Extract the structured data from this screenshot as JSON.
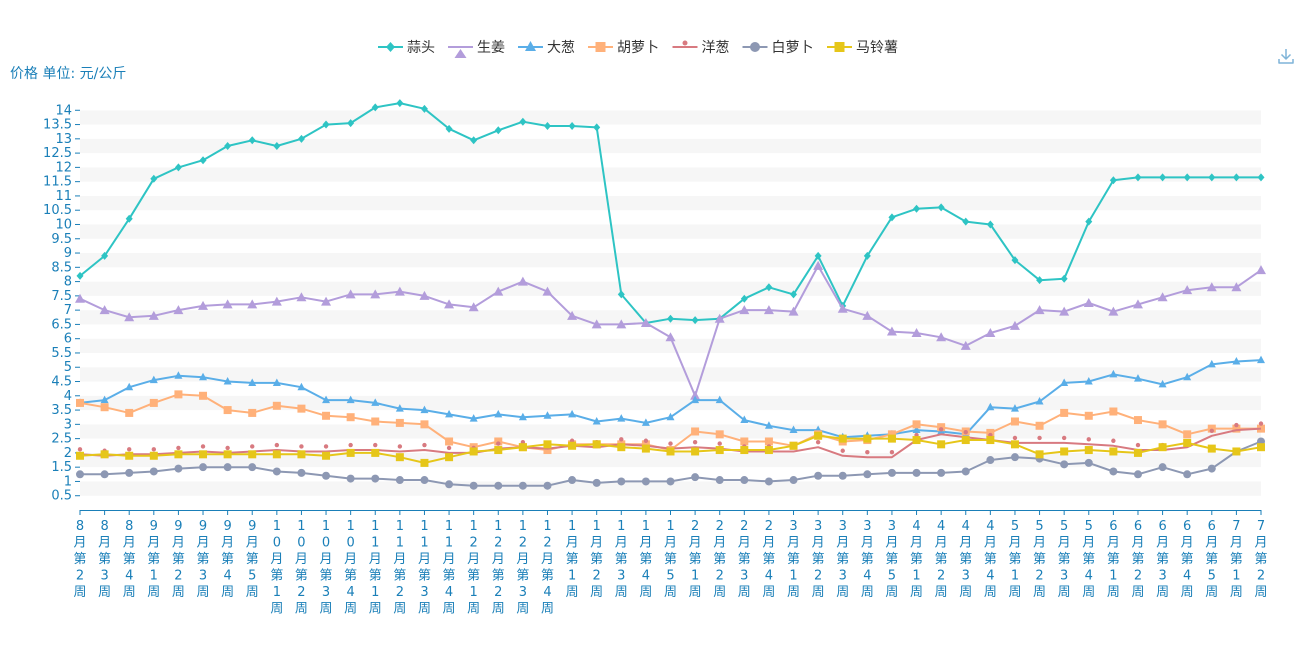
{
  "toolbar": {
    "download_icon": "download-icon"
  },
  "chart_data": {
    "type": "line",
    "ylabel": "价格 单位: 元/公斤",
    "ylim": [
      0,
      14.5
    ],
    "yticks": [
      0.5,
      1,
      1.5,
      2,
      2.5,
      3,
      3.5,
      4,
      4.5,
      5,
      5.5,
      6,
      6.5,
      7,
      7.5,
      8,
      8.5,
      9,
      9.5,
      10,
      10.5,
      11,
      11.5,
      12,
      12.5,
      13,
      13.5,
      14
    ],
    "ytick_labels": [
      "0.5",
      "1",
      "1.5",
      "2",
      "2.5",
      "3",
      "3.5",
      "4",
      "4.5",
      "5",
      "5.5",
      "6",
      "6.5",
      "7",
      "7.5",
      "8",
      "8.5",
      "9",
      "9.5",
      "10",
      "10.5",
      "11",
      "11.5",
      "12",
      "12.5",
      "13",
      "13.5",
      "14"
    ],
    "grid": "horizontal-bands",
    "legend_position": "top-center",
    "categories": [
      "8月第2周",
      "8月第3周",
      "8月第4周",
      "9月第1周",
      "9月第2周",
      "9月第3周",
      "9月第4周",
      "9月第5周",
      "10月第1周",
      "10月第2周",
      "10月第3周",
      "10月第4周",
      "11月第1周",
      "11月第2周",
      "11月第3周",
      "11月第4周",
      "12月第1周",
      "12月第2周",
      "12月第3周",
      "12月第4周",
      "1月第1周",
      "1月第2周",
      "1月第3周",
      "1月第4周",
      "1月第5周",
      "2月第1周",
      "2月第2周",
      "2月第3周",
      "2月第4周",
      "3月第1周",
      "3月第2周",
      "3月第3周",
      "3月第4周",
      "3月第5周",
      "4月第1周",
      "4月第2周",
      "4月第3周",
      "4月第4周",
      "5月第1周",
      "5月第2周",
      "5月第3周",
      "5月第4周",
      "6月第1周",
      "6月第2周",
      "6月第3周",
      "6月第4周",
      "6月第5周",
      "7月第1周",
      "7月第2周"
    ],
    "series": [
      {
        "name": "蒜头",
        "color": "#2ec4c4",
        "marker": "diamond",
        "values": [
          8.2,
          8.9,
          10.2,
          11.6,
          12,
          12.25,
          12.75,
          12.95,
          12.75,
          13,
          13.5,
          13.55,
          14.1,
          14.25,
          14.05,
          13.35,
          12.95,
          13.3,
          13.6,
          13.45,
          13.45,
          13.4,
          7.55,
          6.55,
          6.7,
          6.65,
          6.7,
          7.4,
          7.8,
          7.55,
          8.9,
          7.15,
          8.9,
          10.25,
          10.55,
          10.6,
          10.1,
          10,
          8.75,
          8.05,
          8.1,
          10.1,
          11.55,
          11.65,
          11.65,
          11.65,
          11.65,
          11.65,
          11.65
        ]
      },
      {
        "name": "生姜",
        "color": "#b39ddb",
        "marker": "triangle-lg",
        "values": [
          7.4,
          7,
          6.75,
          6.8,
          7,
          7.15,
          7.2,
          7.2,
          7.3,
          7.45,
          7.3,
          7.55,
          7.55,
          7.65,
          7.5,
          7.2,
          7.1,
          7.65,
          8,
          7.65,
          6.8,
          6.5,
          6.5,
          6.55,
          6.05,
          4,
          6.7,
          7,
          7,
          6.95,
          8.55,
          7.05,
          6.8,
          6.25,
          6.2,
          6.05,
          5.75,
          6.2,
          6.45,
          7,
          6.95,
          7.25,
          6.95,
          7.2,
          7.45,
          7.7,
          7.8,
          7.8,
          8.4
        ]
      },
      {
        "name": "大葱",
        "color": "#5aaee8",
        "marker": "triangle",
        "values": [
          3.75,
          3.85,
          4.3,
          4.55,
          4.7,
          4.65,
          4.5,
          4.45,
          4.45,
          4.3,
          3.85,
          3.85,
          3.75,
          3.55,
          3.5,
          3.35,
          3.2,
          3.35,
          3.25,
          3.3,
          3.35,
          3.1,
          3.2,
          3.05,
          3.25,
          3.85,
          3.85,
          3.15,
          2.95,
          2.8,
          2.8,
          2.55,
          2.6,
          2.65,
          2.8,
          2.75,
          2.65,
          3.6,
          3.55,
          3.8,
          4.45,
          4.5,
          4.75,
          4.6,
          4.4,
          4.65,
          5.1,
          5.2,
          5.25
        ]
      },
      {
        "name": "胡萝卜",
        "color": "#ffb17a",
        "marker": "square",
        "values": [
          3.75,
          3.6,
          3.4,
          3.75,
          4.05,
          4,
          3.5,
          3.4,
          3.65,
          3.55,
          3.3,
          3.25,
          3.1,
          3.05,
          3,
          2.4,
          2.2,
          2.4,
          2.2,
          2.1,
          2.3,
          2.3,
          2.3,
          2.3,
          2.1,
          2.75,
          2.65,
          2.4,
          2.4,
          2.25,
          2.65,
          2.4,
          2.45,
          2.65,
          3,
          2.9,
          2.75,
          2.7,
          3.1,
          2.95,
          3.4,
          3.3,
          3.45,
          3.15,
          3,
          2.65,
          2.85,
          2.85,
          2.85
        ]
      },
      {
        "name": "洋葱",
        "color": "#d87a80",
        "marker": "dot",
        "values": [
          1.95,
          1.9,
          1.95,
          1.95,
          2,
          2.05,
          2,
          2.05,
          2.1,
          2.05,
          2.05,
          2.1,
          2.1,
          2.05,
          2.1,
          2,
          2,
          2.15,
          2.2,
          2.15,
          2.25,
          2.2,
          2.3,
          2.25,
          2.15,
          2.2,
          2.15,
          2.05,
          2.05,
          2.05,
          2.2,
          1.9,
          1.85,
          1.85,
          2.45,
          2.65,
          2.55,
          2.45,
          2.35,
          2.35,
          2.35,
          2.3,
          2.25,
          2.1,
          2.1,
          2.2,
          2.6,
          2.8,
          2.85
        ]
      },
      {
        "name": "白萝卜",
        "color": "#8d98b3",
        "marker": "circle",
        "values": [
          1.25,
          1.25,
          1.3,
          1.35,
          1.45,
          1.5,
          1.5,
          1.5,
          1.35,
          1.3,
          1.2,
          1.1,
          1.1,
          1.05,
          1.05,
          0.9,
          0.85,
          0.85,
          0.85,
          0.85,
          1.05,
          0.95,
          1,
          1,
          1,
          1.15,
          1.05,
          1.05,
          1,
          1.05,
          1.2,
          1.2,
          1.25,
          1.3,
          1.3,
          1.3,
          1.35,
          1.75,
          1.85,
          1.8,
          1.6,
          1.65,
          1.35,
          1.25,
          1.5,
          1.25,
          1.45,
          2.05,
          2.4
        ]
      },
      {
        "name": "马铃薯",
        "color": "#e6c619",
        "marker": "square",
        "values": [
          1.9,
          1.95,
          1.9,
          1.9,
          1.95,
          1.95,
          1.95,
          1.95,
          1.95,
          1.95,
          1.9,
          2,
          2,
          1.85,
          1.65,
          1.85,
          2.05,
          2.1,
          2.2,
          2.3,
          2.25,
          2.3,
          2.2,
          2.15,
          2.05,
          2.05,
          2.1,
          2.1,
          2.1,
          2.25,
          2.6,
          2.5,
          2.5,
          2.5,
          2.45,
          2.3,
          2.45,
          2.45,
          2.3,
          1.95,
          2.05,
          2.1,
          2.05,
          2,
          2.2,
          2.35,
          2.15,
          2.05,
          2.2
        ]
      }
    ]
  }
}
